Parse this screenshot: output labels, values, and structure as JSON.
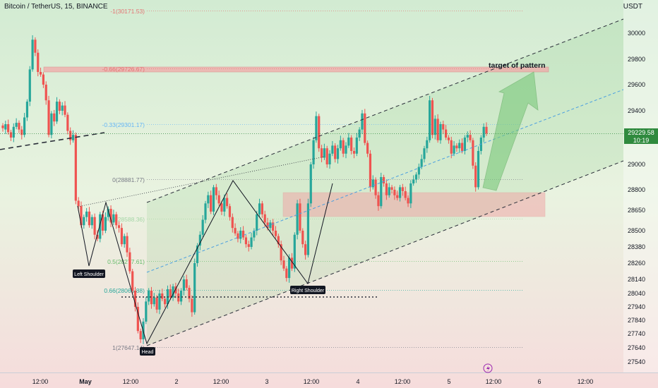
{
  "chart_title": "Bitcoin / TetherUS, 15, BINANCE",
  "currency": "USDT",
  "current_price": "29229.58",
  "countdown": "10:19",
  "annotations": {
    "target": "target of pattern",
    "left_shoulder": "Left Shoulder",
    "head": "Head",
    "right_shoulder": "Right Shoulder"
  },
  "chart_data": {
    "type": "candlestick",
    "ylim": [
      27480,
      30140
    ],
    "y_ticks": [
      30000,
      29800,
      29600,
      29400,
      29000,
      28800,
      28650,
      28500,
      28380,
      28260,
      28140,
      28040,
      27940,
      27840,
      27740,
      27640,
      27540
    ],
    "x_tick_labels": [
      "12:00",
      "May",
      "12:00",
      "2",
      "12:00",
      "3",
      "12:00",
      "4",
      "12:00",
      "5",
      "12:00",
      "6",
      "12:00"
    ],
    "fib_levels": [
      {
        "label": "-1(30171.53)",
        "price": 30171.53,
        "color": "#e57373"
      },
      {
        "label": "-0.66(29726.67)",
        "price": 29726.67,
        "color": "#e57373"
      },
      {
        "label": "-0.33(29301.17)",
        "price": 29301.17,
        "color": "#64b5f6"
      },
      {
        "label": "0(28881.77)",
        "price": 28881.77,
        "color": "#787b86"
      },
      {
        "label": "0.38(28588.36)",
        "price": 28588.36,
        "color": "#a5d6a7"
      },
      {
        "label": "0.5(28277.61)",
        "price": 28277.61,
        "color": "#66bb6a"
      },
      {
        "label": "0.66(28065.88)",
        "price": 28065.88,
        "color": "#26a69a"
      },
      {
        "label": "1(27647.14)",
        "price": 27647.14,
        "color": "#787b86"
      }
    ],
    "price_path": [
      [
        29290,
        29270
      ],
      [
        29260,
        29300
      ],
      [
        29300,
        29240
      ],
      [
        29240,
        29200
      ],
      [
        29200,
        29280
      ],
      [
        29280,
        29310
      ],
      [
        29310,
        29260
      ],
      [
        29260,
        29220
      ],
      [
        29220,
        29350
      ],
      [
        29350,
        29470
      ],
      [
        29470,
        29720
      ],
      [
        29720,
        29950
      ],
      [
        29950,
        29850
      ],
      [
        29850,
        29700
      ],
      [
        29700,
        29680
      ],
      [
        29680,
        29600
      ],
      [
        29600,
        29480
      ],
      [
        29480,
        29220
      ],
      [
        29220,
        29380
      ],
      [
        29380,
        29320
      ],
      [
        29320,
        29470
      ],
      [
        29470,
        29400
      ],
      [
        29400,
        29440
      ],
      [
        29440,
        29370
      ],
      [
        29370,
        29250
      ],
      [
        29250,
        29180
      ],
      [
        29180,
        29220
      ],
      [
        29220,
        28720
      ],
      [
        28720,
        28680
      ],
      [
        28680,
        28540
      ],
      [
        28540,
        28600
      ],
      [
        28600,
        28640
      ],
      [
        28640,
        28540
      ],
      [
        28540,
        28600
      ],
      [
        28600,
        28470
      ],
      [
        28470,
        28440
      ],
      [
        28440,
        28620
      ],
      [
        28620,
        28500
      ],
      [
        28500,
        28600
      ],
      [
        28600,
        28660
      ],
      [
        28660,
        28560
      ],
      [
        28560,
        28620
      ],
      [
        28620,
        28540
      ],
      [
        28540,
        28520
      ],
      [
        28520,
        28400
      ],
      [
        28400,
        28460
      ],
      [
        28460,
        28340
      ],
      [
        28340,
        28200
      ],
      [
        28200,
        28060
      ],
      [
        28060,
        27940
      ],
      [
        27940,
        27760
      ],
      [
        27760,
        27700
      ],
      [
        27700,
        27830
      ],
      [
        27830,
        27980
      ],
      [
        27980,
        28060
      ],
      [
        28060,
        27960
      ],
      [
        27960,
        28010
      ],
      [
        28010,
        27920
      ],
      [
        27920,
        28040
      ],
      [
        28040,
        28000
      ],
      [
        28000,
        27960
      ],
      [
        27960,
        28070
      ],
      [
        28070,
        28010
      ],
      [
        28010,
        28090
      ],
      [
        28090,
        28040
      ],
      [
        28040,
        27980
      ],
      [
        27980,
        28060
      ],
      [
        28060,
        28140
      ],
      [
        28140,
        28080
      ],
      [
        28080,
        28000
      ],
      [
        28000,
        27900
      ],
      [
        27900,
        28260
      ],
      [
        28260,
        28390
      ],
      [
        28390,
        28470
      ],
      [
        28470,
        28580
      ],
      [
        28580,
        28700
      ],
      [
        28700,
        28760
      ],
      [
        28760,
        28640
      ],
      [
        28640,
        28820
      ],
      [
        28820,
        28760
      ],
      [
        28760,
        28700
      ],
      [
        28700,
        28640
      ],
      [
        28640,
        28740
      ],
      [
        28740,
        28680
      ],
      [
        28680,
        28600
      ],
      [
        28600,
        28520
      ],
      [
        28520,
        28480
      ],
      [
        28480,
        28440
      ],
      [
        28440,
        28500
      ],
      [
        28500,
        28450
      ],
      [
        28450,
        28400
      ],
      [
        28400,
        28380
      ],
      [
        28380,
        28450
      ],
      [
        28450,
        28500
      ],
      [
        28500,
        28620
      ],
      [
        28620,
        28700
      ],
      [
        28700,
        28620
      ],
      [
        28620,
        28560
      ],
      [
        28560,
        28520
      ],
      [
        28520,
        28560
      ],
      [
        28560,
        28500
      ],
      [
        28500,
        28460
      ],
      [
        28460,
        28400
      ],
      [
        28400,
        28280
      ],
      [
        28280,
        28220
      ],
      [
        28220,
        28150
      ],
      [
        28150,
        28300
      ],
      [
        28300,
        28220
      ],
      [
        28220,
        28470
      ],
      [
        28470,
        28700
      ],
      [
        28700,
        28500
      ],
      [
        28500,
        28400
      ],
      [
        28400,
        28320
      ],
      [
        28320,
        28700
      ],
      [
        28700,
        29000
      ],
      [
        29000,
        29180
      ],
      [
        29180,
        29360
      ],
      [
        29360,
        29120
      ],
      [
        29120,
        29050
      ],
      [
        29050,
        29120
      ],
      [
        29120,
        29000
      ],
      [
        29000,
        29080
      ],
      [
        29080,
        29140
      ],
      [
        29140,
        29040
      ],
      [
        29040,
        29120
      ],
      [
        29120,
        29180
      ],
      [
        29180,
        29080
      ],
      [
        29080,
        29140
      ],
      [
        29140,
        29200
      ],
      [
        29200,
        29100
      ],
      [
        29100,
        29080
      ],
      [
        29080,
        29200
      ],
      [
        29200,
        29260
      ],
      [
        29260,
        29380
      ],
      [
        29380,
        29160
      ],
      [
        29160,
        29080
      ],
      [
        29080,
        28820
      ],
      [
        28820,
        28880
      ],
      [
        28880,
        28760
      ],
      [
        28760,
        28680
      ],
      [
        28680,
        28900
      ],
      [
        28900,
        28850
      ],
      [
        28850,
        28760
      ],
      [
        28760,
        28820
      ],
      [
        28820,
        28800
      ],
      [
        28800,
        28760
      ],
      [
        28760,
        28740
      ],
      [
        28740,
        28820
      ],
      [
        28820,
        28790
      ],
      [
        28790,
        28740
      ],
      [
        28740,
        28700
      ],
      [
        28700,
        28850
      ],
      [
        28850,
        28880
      ],
      [
        28880,
        28920
      ],
      [
        28920,
        28980
      ],
      [
        28980,
        29040
      ],
      [
        29040,
        29120
      ],
      [
        29120,
        29180
      ],
      [
        29180,
        29480
      ],
      [
        29480,
        29220
      ],
      [
        29220,
        29340
      ],
      [
        29340,
        29180
      ],
      [
        29180,
        29300
      ],
      [
        29300,
        29260
      ],
      [
        29260,
        29200
      ],
      [
        29200,
        29180
      ],
      [
        29180,
        29080
      ],
      [
        29080,
        29140
      ],
      [
        29140,
        29120
      ],
      [
        29120,
        29160
      ],
      [
        29160,
        29100
      ],
      [
        29100,
        29200
      ],
      [
        29200,
        29220
      ],
      [
        29220,
        29180
      ],
      [
        29180,
        28990
      ],
      [
        28990,
        28820
      ],
      [
        28820,
        29100
      ],
      [
        29100,
        29200
      ],
      [
        29200,
        29280
      ],
      [
        29280,
        29229.58
      ]
    ],
    "colors": {
      "up": "#26a69a",
      "down": "#ef5350",
      "accent": "#2f8a3e"
    }
  }
}
